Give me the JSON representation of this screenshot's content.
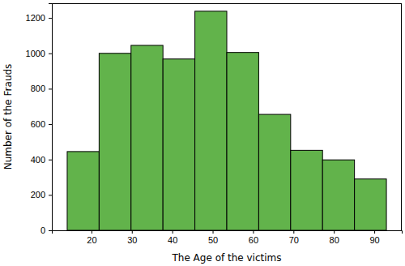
{
  "chart_data": {
    "type": "histogram",
    "x_label": "The Age of the victims",
    "y_label": "Number of the Frauds",
    "bins": [
      14,
      21.9,
      29.8,
      37.7,
      45.6,
      53.5,
      61.4,
      69.3,
      77.2,
      85.1,
      93
    ],
    "values": [
      445,
      1000,
      1045,
      968,
      1238,
      1005,
      655,
      452,
      398,
      290
    ],
    "color": "#62b34b",
    "xlim": [
      10.2,
      96.8
    ],
    "ylim": [
      0,
      1283
    ],
    "xticks": [
      20,
      30,
      40,
      50,
      60,
      70,
      80,
      90
    ],
    "yticks": [
      0,
      200,
      400,
      600,
      800,
      1000,
      1200
    ],
    "grid": false
  }
}
